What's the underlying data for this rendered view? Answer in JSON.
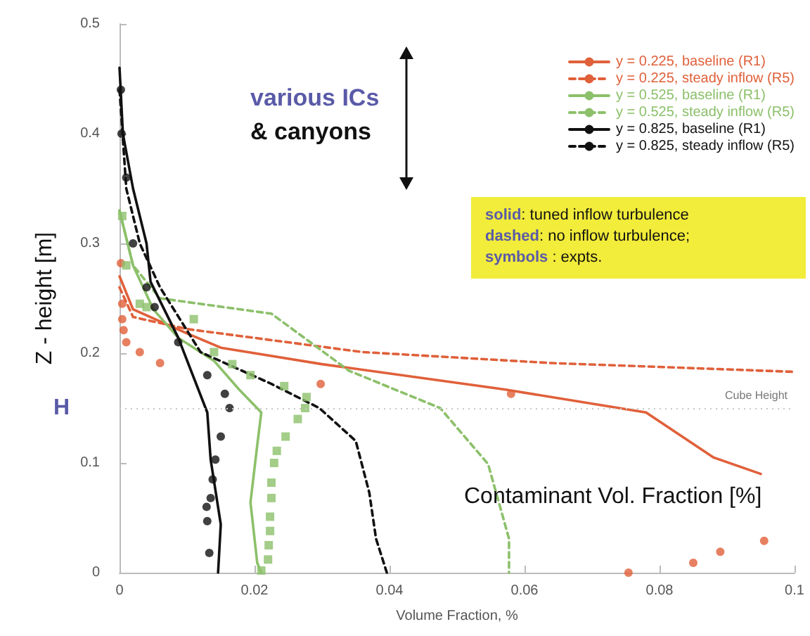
{
  "chart_data": {
    "type": "line",
    "xlabel": "Volume Fraction, %",
    "ylabel": "Z - height [m]",
    "xlim": [
      0,
      0.1
    ],
    "xticks": [
      0,
      0.02,
      0.04,
      0.06,
      0.08,
      0.1
    ],
    "ylim": [
      0,
      0.5
    ],
    "yticks": [
      0,
      0.1,
      0.2,
      0.3,
      0.4,
      0.5
    ],
    "grid": false,
    "legend": "top right",
    "marker": "none",
    "ref_lines": [
      {
        "axis": "y",
        "value": 0.15,
        "label": "Cube Height",
        "color": "#c8c8c8",
        "line_style": "dotted"
      }
    ],
    "annotations": [
      "various ICs",
      "& canyons",
      "solid: tuned inflow turbulence",
      "dashed: no inflow turbulence;",
      "symbols : expts.",
      "Contaminant Vol. Fraction [%]",
      "H"
    ],
    "series": [
      {
        "name": "y = 0.225, baseline (R1)",
        "color": "#e0603a",
        "line_style": "solid",
        "x": [
          0,
          0.002,
          0.01,
          0.015,
          0.03,
          0.057,
          0.078,
          0.088,
          0.095
        ],
        "values": [
          0.27,
          0.24,
          0.218,
          0.205,
          0.19,
          0.167,
          0.146,
          0.105,
          0.09
        ]
      },
      {
        "name": "y = 0.225, steady inflow (R5)",
        "color": "#e0603a",
        "line_style": "dashed",
        "x": [
          0,
          0.002,
          0.01,
          0.036,
          0.064,
          0.1
        ],
        "values": [
          0.26,
          0.233,
          0.222,
          0.201,
          0.191,
          0.183
        ]
      },
      {
        "name": "y = 0.525, baseline (R1)",
        "color": "#8cc06a",
        "line_style": "solid",
        "x": [
          0,
          0.002,
          0.005,
          0.0087,
          0.014,
          0.0177,
          0.021,
          0.0204,
          0.0194,
          0.0204,
          0.021
        ],
        "values": [
          0.33,
          0.28,
          0.24,
          0.214,
          0.193,
          0.167,
          0.146,
          0.116,
          0.064,
          0.009,
          0
        ]
      },
      {
        "name": "y = 0.525, steady inflow (R5)",
        "color": "#8cc06a",
        "line_style": "dashed",
        "x": [
          0,
          0.002,
          0.006,
          0.0225,
          0.034,
          0.0475,
          0.0546,
          0.0577,
          0.0577
        ],
        "values": [
          0.33,
          0.28,
          0.25,
          0.236,
          0.184,
          0.15,
          0.099,
          0.031,
          0
        ]
      },
      {
        "name": "y = 0.825, baseline (R1)",
        "color": "#111111",
        "line_style": "solid",
        "x": [
          0,
          0.0005,
          0.002,
          0.004,
          0.0046,
          0.0087,
          0.013,
          0.0135,
          0.015,
          0.0146
        ],
        "values": [
          0.46,
          0.4,
          0.35,
          0.3,
          0.265,
          0.214,
          0.146,
          0.103,
          0.044,
          0
        ]
      },
      {
        "name": "y = 0.825, steady inflow (R5)",
        "color": "#111111",
        "line_style": "dashed",
        "x": [
          0,
          0.001,
          0.003,
          0.006,
          0.012,
          0.0225,
          0.0296,
          0.035,
          0.037,
          0.038,
          0.0396
        ],
        "values": [
          0.44,
          0.35,
          0.3,
          0.26,
          0.201,
          0.172,
          0.15,
          0.12,
          0.073,
          0.031,
          0
        ]
      },
      {
        "type": "scatter",
        "marker": "circle",
        "color": "#e0603a",
        "x": [
          0.0002,
          0.0004,
          0.0004,
          0.0006,
          0.001,
          0.003,
          0.006,
          0.0298,
          0.058,
          0.0754,
          0.085,
          0.089,
          0.0955
        ],
        "values": [
          0.282,
          0.245,
          0.231,
          0.221,
          0.21,
          0.201,
          0.191,
          0.172,
          0.163,
          0,
          0.009,
          0.019,
          0.029
        ]
      },
      {
        "type": "scatter",
        "marker": "square",
        "color": "#8cc06a",
        "x": [
          0.0004,
          0.001,
          0.003,
          0.004,
          0.011,
          0.014,
          0.0167,
          0.0194,
          0.0244,
          0.0277,
          0.0275,
          0.0264,
          0.0246,
          0.0233,
          0.0229,
          0.0225,
          0.0225,
          0.0223,
          0.0223,
          0.0221,
          0.022,
          0.021
        ],
        "values": [
          0.325,
          0.28,
          0.245,
          0.242,
          0.231,
          0.201,
          0.19,
          0.18,
          0.17,
          0.16,
          0.15,
          0.14,
          0.124,
          0.111,
          0.1,
          0.082,
          0.068,
          0.051,
          0.038,
          0.025,
          0.012,
          0.002
        ]
      },
      {
        "type": "scatter",
        "marker": "circle",
        "color": "#111111",
        "x": [
          0.0002,
          0.0003,
          0.001,
          0.002,
          0.004,
          0.0052,
          0.0087,
          0.013,
          0.0156,
          0.0163,
          0.015,
          0.0142,
          0.0138,
          0.0135,
          0.0129,
          0.013,
          0.0133
        ],
        "values": [
          0.44,
          0.4,
          0.36,
          0.3,
          0.26,
          0.242,
          0.21,
          0.18,
          0.163,
          0.15,
          0.124,
          0.103,
          0.085,
          0.068,
          0.06,
          0.047,
          0.018
        ]
      }
    ]
  }
}
